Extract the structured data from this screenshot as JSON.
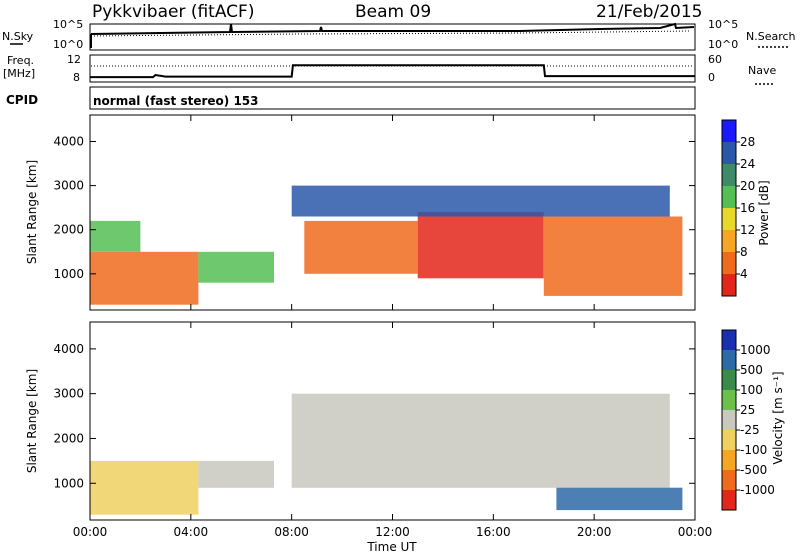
{
  "header": {
    "station": "Pykkvibaer (fitACF)",
    "beam": "Beam 09",
    "date": "21/Feb/2015"
  },
  "top_panels": {
    "nsky_label": "N.Sky",
    "nsky_ticks": [
      "10^5",
      "10^0"
    ],
    "nsearch_label": "N.Search",
    "nsearch_ticks": [
      "10^5",
      "10^0"
    ],
    "freq_label": "Freq.",
    "freq_unit": "[MHz]",
    "freq_ticks": [
      "12",
      "8"
    ],
    "nave_label": "Nave",
    "nave_ticks": [
      "60",
      "0"
    ],
    "cpid_label": "CPID",
    "cpid_text": "normal (fast stereo) 153",
    "freq_series": {
      "time_h": [
        0,
        2.5,
        2.6,
        3.0,
        8.0,
        8.05,
        18.0,
        18.05,
        24.0
      ],
      "mhz": [
        8.4,
        8.4,
        8.8,
        8.5,
        8.5,
        10.6,
        10.6,
        8.6,
        8.6
      ]
    }
  },
  "chart_data": [
    {
      "type": "heatmap",
      "name": "Power",
      "ylabel": "Slant Range [km]",
      "xlabel": "Time UT",
      "x_ticks": [
        "00:00",
        "04:00",
        "08:00",
        "12:00",
        "16:00",
        "20:00",
        "00:00"
      ],
      "x_range_hours": [
        0,
        24
      ],
      "y_ticks": [
        1000,
        2000,
        3000,
        4000
      ],
      "y_range_km": [
        180,
        4600
      ],
      "colorbar": {
        "label": "Power [dB]",
        "ticks": [
          "4",
          "8",
          "12",
          "16",
          "20",
          "24",
          "28"
        ],
        "colors": [
          "#1a1aff",
          "#2a57a8",
          "#3c8a68",
          "#55bf55",
          "#e8d82a",
          "#f5a623",
          "#f06a1c",
          "#e3261a"
        ]
      },
      "regions": [
        {
          "t0": 0.0,
          "t1": 4.3,
          "r0": 300,
          "r1": 1500,
          "level": 6
        },
        {
          "t0": 0.0,
          "t1": 2.0,
          "r0": 1500,
          "r1": 2200,
          "level": 3
        },
        {
          "t0": 4.3,
          "t1": 7.3,
          "r0": 800,
          "r1": 1500,
          "level": 3
        },
        {
          "t0": 8.5,
          "t1": 13.0,
          "r0": 1000,
          "r1": 2200,
          "level": 6
        },
        {
          "t0": 13.0,
          "t1": 18.0,
          "r0": 900,
          "r1": 2400,
          "level": 7
        },
        {
          "t0": 18.0,
          "t1": 23.5,
          "r0": 500,
          "r1": 2300,
          "level": 6
        },
        {
          "t0": 8.0,
          "t1": 23.0,
          "r0": 2300,
          "r1": 3000,
          "level": 1
        }
      ]
    },
    {
      "type": "heatmap",
      "name": "Velocity",
      "ylabel": "Slant Range [km]",
      "xlabel": "Time UT",
      "x_ticks": [
        "00:00",
        "04:00",
        "08:00",
        "12:00",
        "16:00",
        "20:00",
        "00:00"
      ],
      "x_range_hours": [
        0,
        24
      ],
      "y_ticks": [
        1000,
        2000,
        3000,
        4000
      ],
      "y_range_km": [
        180,
        4600
      ],
      "colorbar": {
        "label": "Velocity [m s⁻¹]",
        "ticks": [
          "1000",
          "500",
          "100",
          "25",
          "-25",
          "-100",
          "-500",
          "-1000"
        ],
        "colors": [
          "#1a2fb0",
          "#2d6aa8",
          "#3a8a4c",
          "#6cc04a",
          "#c8c8c0",
          "#f0d060",
          "#f5a623",
          "#f06a1c",
          "#e3261a"
        ]
      },
      "regions": [
        {
          "t0": 0.0,
          "t1": 4.3,
          "r0": 300,
          "r1": 1500,
          "level": 5
        },
        {
          "t0": 4.3,
          "t1": 7.3,
          "r0": 900,
          "r1": 1500,
          "level": 4
        },
        {
          "t0": 8.0,
          "t1": 23.0,
          "r0": 900,
          "r1": 3000,
          "level": 4
        },
        {
          "t0": 18.5,
          "t1": 23.5,
          "r0": 400,
          "r1": 900,
          "level": 1
        }
      ]
    }
  ]
}
